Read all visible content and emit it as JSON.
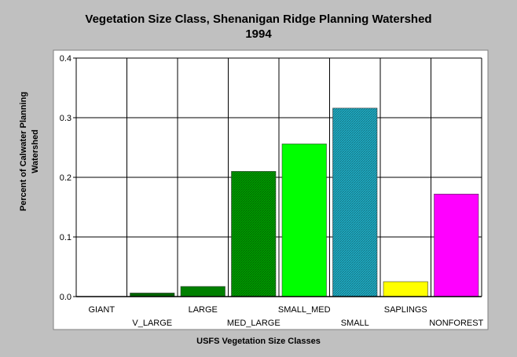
{
  "chart_data": {
    "type": "bar",
    "title": "Vegetation Size Class, Shenanigan Ridge Planning Watershed",
    "subtitle": "1994",
    "ylabel_lines": [
      "Percent of Calwater Planning",
      "Watershed"
    ],
    "xlabel": "USFS Vegetation Size Classes",
    "categories": [
      "GIANT",
      "V_LARGE",
      "LARGE",
      "MED_LARGE",
      "SMALL_MED",
      "SMALL",
      "SAPLINGS",
      "NONFOREST"
    ],
    "values": [
      0.0,
      0.006,
      0.017,
      0.21,
      0.256,
      0.316,
      0.025,
      0.172
    ],
    "colors": [
      "#006400",
      "#006400",
      "#008000",
      "#00a000",
      "#00ff00",
      "#20b0c8",
      "#ffff00",
      "#ff00ff"
    ],
    "ylim": [
      0,
      0.4
    ],
    "yticks": [
      "0.0",
      "0.1",
      "0.2",
      "0.3",
      "0.4"
    ],
    "grid": true
  }
}
